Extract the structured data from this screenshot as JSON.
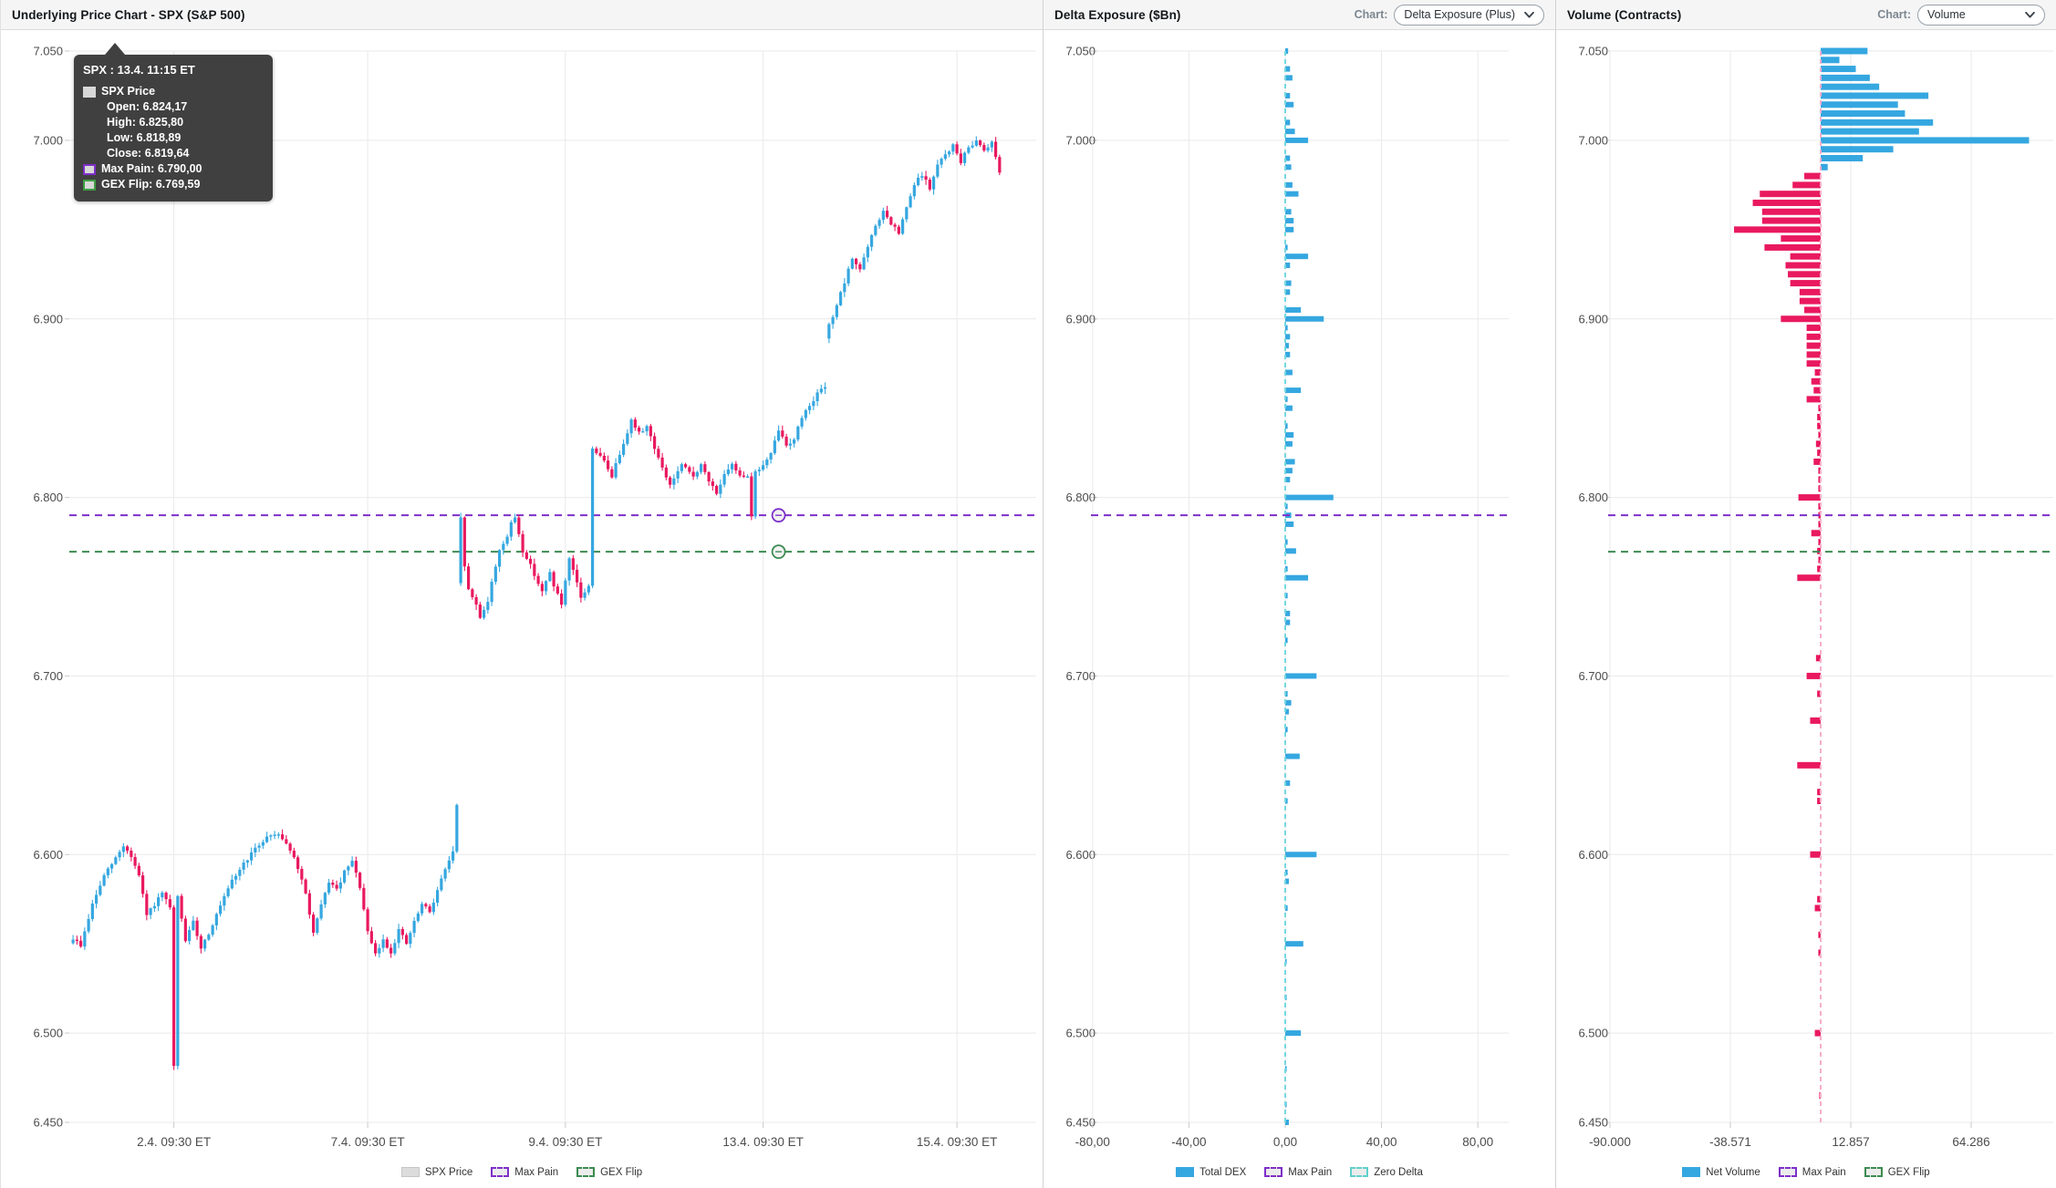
{
  "colors": {
    "up": "#35a7e0",
    "down": "#e9195f",
    "bar_blue": "#35a7e0",
    "bar_pink": "#e9195f",
    "max_pain": "#7d2fc9",
    "gex_flip": "#3c8b52",
    "zero_delta": "#74d7e0",
    "zero_volume": "#f6aecb",
    "grid": "#e9e9e9",
    "axis_line": "#dadada",
    "axis_text": "#4c4c4c"
  },
  "panels": {
    "price": {
      "title": "Underlying Price Chart - SPX (S&P 500)",
      "legend": [
        {
          "label": "SPX Price",
          "swatch": "gray"
        },
        {
          "label": "Max Pain",
          "swatch": "dash-purple"
        },
        {
          "label": "GEX Flip",
          "swatch": "dash-green"
        }
      ]
    },
    "dex": {
      "title": "Delta Exposure ($Bn)",
      "chart_label": "Chart:",
      "dropdown_value": "Delta Exposure (Plus)",
      "legend": [
        {
          "label": "Total DEX",
          "swatch": "blue"
        },
        {
          "label": "Max Pain",
          "swatch": "dash-purple"
        },
        {
          "label": "Zero Delta",
          "swatch": "dash-teal"
        }
      ]
    },
    "vol": {
      "title": "Volume (Contracts)",
      "chart_label": "Chart:",
      "dropdown_value": "Volume",
      "legend": [
        {
          "label": "Net Volume",
          "swatch": "blue"
        },
        {
          "label": "Max Pain",
          "swatch": "dash-purple"
        },
        {
          "label": "GEX Flip",
          "swatch": "dash-green"
        }
      ]
    }
  },
  "tooltip": {
    "title": "SPX : 13.4. 11:15 ET",
    "series": "SPX Price",
    "rows": [
      {
        "label": "Open:",
        "value": "6.824,17"
      },
      {
        "label": "High:",
        "value": "6.825,80"
      },
      {
        "label": "Low:",
        "value": "6.818,89"
      },
      {
        "label": "Close:",
        "value": "6.819,64"
      }
    ],
    "max_pain": {
      "label": "Max Pain:",
      "value": "6.790,00"
    },
    "gex_flip": {
      "label": "GEX Flip:",
      "value": "6.769,59"
    }
  },
  "chart_data": [
    {
      "type": "candlestick",
      "title": "Underlying Price Chart - SPX (S&P 500)",
      "ylim": [
        6450,
        7050
      ],
      "y_ticks": [
        {
          "v": 7050,
          "label": "7.050"
        },
        {
          "v": 7000,
          "label": "7.000"
        },
        {
          "v": 6900,
          "label": "6.900"
        },
        {
          "v": 6800,
          "label": "6.800"
        },
        {
          "v": 6700,
          "label": "6.700"
        },
        {
          "v": 6600,
          "label": "6.600"
        },
        {
          "v": 6500,
          "label": "6.500"
        },
        {
          "v": 6450,
          "label": "6.450"
        }
      ],
      "x_ticks": [
        {
          "bar": 26,
          "label": "2.4. 09:30 ET"
        },
        {
          "bar": 76,
          "label": "7.4. 09:30 ET"
        },
        {
          "bar": 127,
          "label": "9.4. 09:30 ET"
        },
        {
          "bar": 178,
          "label": "13.4. 09:30 ET"
        },
        {
          "bar": 228,
          "label": "15.4. 09:30 ET"
        }
      ],
      "bar_count": 240,
      "max_pain": 6790.0,
      "gex_flip": 6769.59,
      "marker_bar": 182,
      "gap_opens": {
        "100": 6752,
        "195": 6889
      },
      "hover_candle": {
        "time": "13.4. 11:15 ET",
        "open": 6824.17,
        "high": 6825.8,
        "low": 6818.89,
        "close": 6819.64
      },
      "price_path": [
        [
          0,
          6553
        ],
        [
          2,
          6549
        ],
        [
          5,
          6572
        ],
        [
          8,
          6588
        ],
        [
          11,
          6598
        ],
        [
          13,
          6605
        ],
        [
          15,
          6599
        ],
        [
          17,
          6588
        ],
        [
          19,
          6566
        ],
        [
          21,
          6572
        ],
        [
          23,
          6578
        ],
        [
          25,
          6570
        ],
        [
          26,
          6481
        ],
        [
          27,
          6576
        ],
        [
          29,
          6552
        ],
        [
          31,
          6562
        ],
        [
          33,
          6548
        ],
        [
          35,
          6556
        ],
        [
          38,
          6571
        ],
        [
          41,
          6585
        ],
        [
          44,
          6595
        ],
        [
          47,
          6603
        ],
        [
          50,
          6610
        ],
        [
          53,
          6612
        ],
        [
          56,
          6603
        ],
        [
          58,
          6592
        ],
        [
          60,
          6578
        ],
        [
          62,
          6556
        ],
        [
          64,
          6571
        ],
        [
          66,
          6585
        ],
        [
          68,
          6580
        ],
        [
          70,
          6590
        ],
        [
          72,
          6596
        ],
        [
          74,
          6582
        ],
        [
          76,
          6556
        ],
        [
          78,
          6544
        ],
        [
          80,
          6552
        ],
        [
          82,
          6545
        ],
        [
          84,
          6558
        ],
        [
          86,
          6550
        ],
        [
          88,
          6562
        ],
        [
          90,
          6572
        ],
        [
          92,
          6568
        ],
        [
          94,
          6580
        ],
        [
          96,
          6592
        ],
        [
          98,
          6601
        ],
        [
          99,
          6627
        ],
        [
          100,
          6788
        ],
        [
          101,
          6762
        ],
        [
          102,
          6748
        ],
        [
          104,
          6740
        ],
        [
          105,
          6733
        ],
        [
          107,
          6742
        ],
        [
          108,
          6752
        ],
        [
          110,
          6771
        ],
        [
          112,
          6778
        ],
        [
          113,
          6785
        ],
        [
          114,
          6789
        ],
        [
          116,
          6770
        ],
        [
          118,
          6762
        ],
        [
          120,
          6752
        ],
        [
          121,
          6747
        ],
        [
          123,
          6758
        ],
        [
          124,
          6751
        ],
        [
          126,
          6740
        ],
        [
          128,
          6765
        ],
        [
          130,
          6752
        ],
        [
          131,
          6744
        ],
        [
          133,
          6750
        ],
        [
          134,
          6828
        ],
        [
          137,
          6820
        ],
        [
          139,
          6812
        ],
        [
          142,
          6831
        ],
        [
          144,
          6843
        ],
        [
          146,
          6836
        ],
        [
          148,
          6840
        ],
        [
          150,
          6828
        ],
        [
          152,
          6816
        ],
        [
          154,
          6807
        ],
        [
          157,
          6818
        ],
        [
          160,
          6812
        ],
        [
          162,
          6818
        ],
        [
          164,
          6809
        ],
        [
          166,
          6803
        ],
        [
          168,
          6812
        ],
        [
          170,
          6818
        ],
        [
          172,
          6813
        ],
        [
          174,
          6812
        ],
        [
          175,
          6790
        ],
        [
          176,
          6814
        ],
        [
          178,
          6818
        ],
        [
          180,
          6824
        ],
        [
          182,
          6838
        ],
        [
          184,
          6829
        ],
        [
          186,
          6833
        ],
        [
          188,
          6845
        ],
        [
          190,
          6852
        ],
        [
          192,
          6858
        ],
        [
          194,
          6862
        ],
        [
          195,
          6896
        ],
        [
          197,
          6908
        ],
        [
          199,
          6920
        ],
        [
          201,
          6934
        ],
        [
          203,
          6928
        ],
        [
          205,
          6940
        ],
        [
          207,
          6952
        ],
        [
          209,
          6960
        ],
        [
          211,
          6953
        ],
        [
          213,
          6948
        ],
        [
          215,
          6962
        ],
        [
          217,
          6975
        ],
        [
          219,
          6981
        ],
        [
          221,
          6973
        ],
        [
          223,
          6986
        ],
        [
          225,
          6992
        ],
        [
          227,
          6997
        ],
        [
          229,
          6988
        ],
        [
          231,
          6996
        ],
        [
          233,
          7000
        ],
        [
          235,
          6995
        ],
        [
          237,
          6999
        ],
        [
          239,
          6983
        ]
      ]
    },
    {
      "type": "bar",
      "orientation": "horizontal",
      "title": "Delta Exposure ($Bn)",
      "ylim": [
        6450,
        7050
      ],
      "y_ticks": [
        {
          "v": 7050,
          "label": "7.050"
        },
        {
          "v": 7000,
          "label": "7.000"
        },
        {
          "v": 6900,
          "label": "6.900"
        },
        {
          "v": 6800,
          "label": "6.800"
        },
        {
          "v": 6700,
          "label": "6.700"
        },
        {
          "v": 6600,
          "label": "6.600"
        },
        {
          "v": 6500,
          "label": "6.500"
        },
        {
          "v": 6450,
          "label": "6.450"
        }
      ],
      "x_ticks": [
        {
          "v": -80,
          "label": "-80,00"
        },
        {
          "v": -40,
          "label": "-40,00"
        },
        {
          "v": 0,
          "label": "0,00"
        },
        {
          "v": 40,
          "label": "40,00"
        },
        {
          "v": 80,
          "label": "80,00"
        }
      ],
      "max_pain": 6790.0,
      "zero_delta": 0,
      "bars": [
        [
          7050,
          1.2
        ],
        [
          7040,
          2
        ],
        [
          7035,
          3
        ],
        [
          7025,
          2
        ],
        [
          7020,
          3.5
        ],
        [
          7010,
          2
        ],
        [
          7005,
          4
        ],
        [
          7000,
          9.5
        ],
        [
          6990,
          2
        ],
        [
          6985,
          2.5
        ],
        [
          6975,
          3
        ],
        [
          6970,
          5.5
        ],
        [
          6960,
          2.5
        ],
        [
          6955,
          3.5
        ],
        [
          6950,
          3.5
        ],
        [
          6940,
          1
        ],
        [
          6935,
          9.5
        ],
        [
          6930,
          2
        ],
        [
          6920,
          2.5
        ],
        [
          6915,
          2
        ],
        [
          6905,
          6.5
        ],
        [
          6900,
          16
        ],
        [
          6895,
          1
        ],
        [
          6890,
          2
        ],
        [
          6885,
          1.5
        ],
        [
          6880,
          2
        ],
        [
          6870,
          3
        ],
        [
          6860,
          6.5
        ],
        [
          6855,
          1
        ],
        [
          6850,
          3
        ],
        [
          6840,
          1
        ],
        [
          6835,
          3.5
        ],
        [
          6830,
          3
        ],
        [
          6820,
          4
        ],
        [
          6815,
          3
        ],
        [
          6810,
          2
        ],
        [
          6800,
          20
        ],
        [
          6795,
          1
        ],
        [
          6790,
          2.5
        ],
        [
          6785,
          3.5
        ],
        [
          6775,
          1
        ],
        [
          6770,
          4.5
        ],
        [
          6760,
          1
        ],
        [
          6755,
          9.5
        ],
        [
          6745,
          1
        ],
        [
          6735,
          2
        ],
        [
          6730,
          2
        ],
        [
          6720,
          1
        ],
        [
          6700,
          13
        ],
        [
          6690,
          1
        ],
        [
          6685,
          2.5
        ],
        [
          6680,
          1.5
        ],
        [
          6670,
          1
        ],
        [
          6655,
          6
        ],
        [
          6640,
          2
        ],
        [
          6630,
          1
        ],
        [
          6600,
          13
        ],
        [
          6590,
          1
        ],
        [
          6585,
          1.5
        ],
        [
          6570,
          1
        ],
        [
          6550,
          7.5
        ],
        [
          6540,
          0.6
        ],
        [
          6520,
          0.6
        ],
        [
          6500,
          6.5
        ],
        [
          6480,
          0.6
        ],
        [
          6460,
          0.6
        ],
        [
          6450,
          1.5
        ]
      ]
    },
    {
      "type": "bar",
      "orientation": "horizontal",
      "title": "Volume (Contracts)",
      "ylim": [
        6450,
        7050
      ],
      "y_ticks": [
        {
          "v": 7050,
          "label": "7.050"
        },
        {
          "v": 7000,
          "label": "7.000"
        },
        {
          "v": 6900,
          "label": "6.900"
        },
        {
          "v": 6800,
          "label": "6.800"
        },
        {
          "v": 6700,
          "label": "6.700"
        },
        {
          "v": 6600,
          "label": "6.600"
        },
        {
          "v": 6500,
          "label": "6.500"
        },
        {
          "v": 6450,
          "label": "6.450"
        }
      ],
      "x_ticks": [
        {
          "v": -90000,
          "label": "-90.000"
        },
        {
          "v": -38571,
          "label": "-38.571"
        },
        {
          "v": 12857,
          "label": "12.857"
        },
        {
          "v": 64286,
          "label": "64.286"
        }
      ],
      "max_pain": 6790.0,
      "gex_flip": 6769.59,
      "bars": [
        [
          7050,
          20000
        ],
        [
          7045,
          8000
        ],
        [
          7040,
          15000
        ],
        [
          7035,
          21000
        ],
        [
          7030,
          25000
        ],
        [
          7025,
          46000
        ],
        [
          7020,
          33000
        ],
        [
          7015,
          36000
        ],
        [
          7010,
          48000
        ],
        [
          7005,
          42000
        ],
        [
          7000,
          89000
        ],
        [
          6995,
          31000
        ],
        [
          6990,
          18000
        ],
        [
          6985,
          3000
        ],
        [
          6980,
          -7000
        ],
        [
          6975,
          -12000
        ],
        [
          6970,
          -26000
        ],
        [
          6965,
          -29000
        ],
        [
          6960,
          -25000
        ],
        [
          6955,
          -25000
        ],
        [
          6950,
          -37000
        ],
        [
          6945,
          -17000
        ],
        [
          6940,
          -24000
        ],
        [
          6935,
          -13000
        ],
        [
          6930,
          -15000
        ],
        [
          6925,
          -14000
        ],
        [
          6920,
          -13000
        ],
        [
          6915,
          -9000
        ],
        [
          6910,
          -9000
        ],
        [
          6905,
          -7000
        ],
        [
          6900,
          -17000
        ],
        [
          6895,
          -6000
        ],
        [
          6890,
          -6000
        ],
        [
          6885,
          -6000
        ],
        [
          6880,
          -6000
        ],
        [
          6875,
          -6000
        ],
        [
          6870,
          -2500
        ],
        [
          6865,
          -4000
        ],
        [
          6860,
          -3000
        ],
        [
          6855,
          -6000
        ],
        [
          6850,
          -1000
        ],
        [
          6845,
          -1500
        ],
        [
          6840,
          -1500
        ],
        [
          6835,
          -1000
        ],
        [
          6830,
          -2000
        ],
        [
          6825,
          -1500
        ],
        [
          6820,
          -3000
        ],
        [
          6815,
          -1000
        ],
        [
          6810,
          -1000
        ],
        [
          6805,
          -1000
        ],
        [
          6800,
          -9500
        ],
        [
          6795,
          -1000
        ],
        [
          6790,
          -1000
        ],
        [
          6785,
          -1000
        ],
        [
          6780,
          -4000
        ],
        [
          6775,
          -1000
        ],
        [
          6770,
          -1500
        ],
        [
          6765,
          -1000
        ],
        [
          6760,
          -1500
        ],
        [
          6755,
          -10000
        ],
        [
          6710,
          -2000
        ],
        [
          6700,
          -6000
        ],
        [
          6690,
          -1500
        ],
        [
          6675,
          -4500
        ],
        [
          6650,
          -10000
        ],
        [
          6635,
          -1500
        ],
        [
          6630,
          -1500
        ],
        [
          6600,
          -4500
        ],
        [
          6575,
          -1500
        ],
        [
          6570,
          -2500
        ],
        [
          6555,
          -1000
        ],
        [
          6545,
          -1000
        ],
        [
          6500,
          -2500
        ],
        [
          6465,
          -600
        ]
      ]
    }
  ]
}
